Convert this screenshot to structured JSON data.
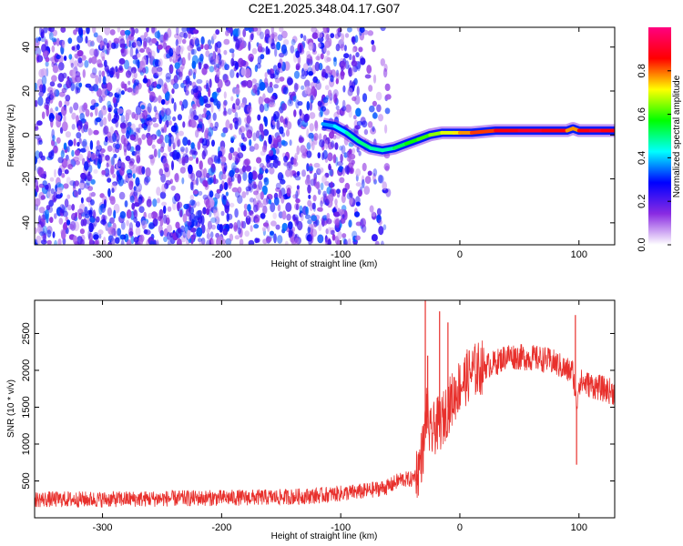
{
  "title": "C2E1.2025.348.04.17.G07",
  "chart_data": [
    {
      "type": "heatmap",
      "title": "C2E1.2025.348.04.17.G07",
      "xlabel": "Height of straight line (km)",
      "ylabel": "Frequency (Hz)",
      "xlim": [
        -357,
        130
      ],
      "ylim": [
        -50,
        49
      ],
      "xticks": [
        -300,
        -200,
        -100,
        0,
        100
      ],
      "yticks": [
        -40,
        -20,
        0,
        20,
        40
      ],
      "colorbar": {
        "label": "Normalized spectral amplitude",
        "range": [
          0.0,
          1.0
        ],
        "ticks": [
          0.0,
          0.2,
          0.4,
          0.6,
          0.8
        ],
        "colormap": [
          "#ffffff",
          "#8a2be2",
          "#0000ff",
          "#00ffff",
          "#00ff00",
          "#ffff00",
          "#ff0000",
          "#ff0080"
        ]
      },
      "noise_region": {
        "x": [
          -357,
          -60
        ],
        "amplitude": [
          0.05,
          0.35
        ]
      },
      "ridge": {
        "x": [
          -115,
          -105,
          -95,
          -85,
          -75,
          -65,
          -55,
          -45,
          -35,
          -25,
          -15,
          -5,
          0,
          10,
          30,
          50,
          70,
          90,
          95,
          100,
          110,
          120,
          130
        ],
        "y": [
          5,
          4,
          1,
          -3,
          -6,
          -7,
          -6,
          -4,
          -2,
          0,
          1,
          1,
          1,
          1,
          2,
          2,
          2,
          2,
          3,
          2,
          2,
          2,
          2
        ],
        "amplitude": [
          0.35,
          0.4,
          0.45,
          0.5,
          0.5,
          0.45,
          0.5,
          0.55,
          0.6,
          0.6,
          0.7,
          0.7,
          0.75,
          0.8,
          0.85,
          0.9,
          0.9,
          0.85,
          0.7,
          0.85,
          0.9,
          0.9,
          0.85
        ]
      }
    },
    {
      "type": "line",
      "xlabel": "Height of straight line (km)",
      "ylabel": "SNR (10 * v/v)",
      "xlim": [
        -357,
        130
      ],
      "ylim": [
        0,
        2950
      ],
      "xticks": [
        -300,
        -200,
        -100,
        0,
        100
      ],
      "yticks": [
        500,
        1000,
        1500,
        2000,
        2500
      ],
      "color": "#e8302c",
      "x": [
        -357,
        -300,
        -250,
        -200,
        -150,
        -120,
        -100,
        -80,
        -60,
        -50,
        -40,
        -35,
        -30,
        -28,
        -25,
        -20,
        -15,
        -10,
        -5,
        0,
        10,
        20,
        30,
        40,
        50,
        60,
        70,
        80,
        90,
        95,
        98,
        100,
        110,
        120,
        130
      ],
      "y": [
        250,
        250,
        260,
        270,
        280,
        300,
        330,
        360,
        420,
        520,
        520,
        650,
        1000,
        1500,
        1100,
        1250,
        1300,
        1500,
        1650,
        1800,
        1980,
        2050,
        2100,
        2200,
        2180,
        2170,
        2150,
        2100,
        2000,
        1980,
        1500,
        1850,
        1800,
        1750,
        1700
      ],
      "spikes": [
        {
          "x": -29,
          "y": 2950
        },
        {
          "x": -27,
          "y": 2200
        },
        {
          "x": -17,
          "y": 2800
        },
        {
          "x": -10,
          "y": 2650
        },
        {
          "x": 97,
          "y": 2750
        },
        {
          "x": 98,
          "y": 720
        }
      ]
    }
  ]
}
